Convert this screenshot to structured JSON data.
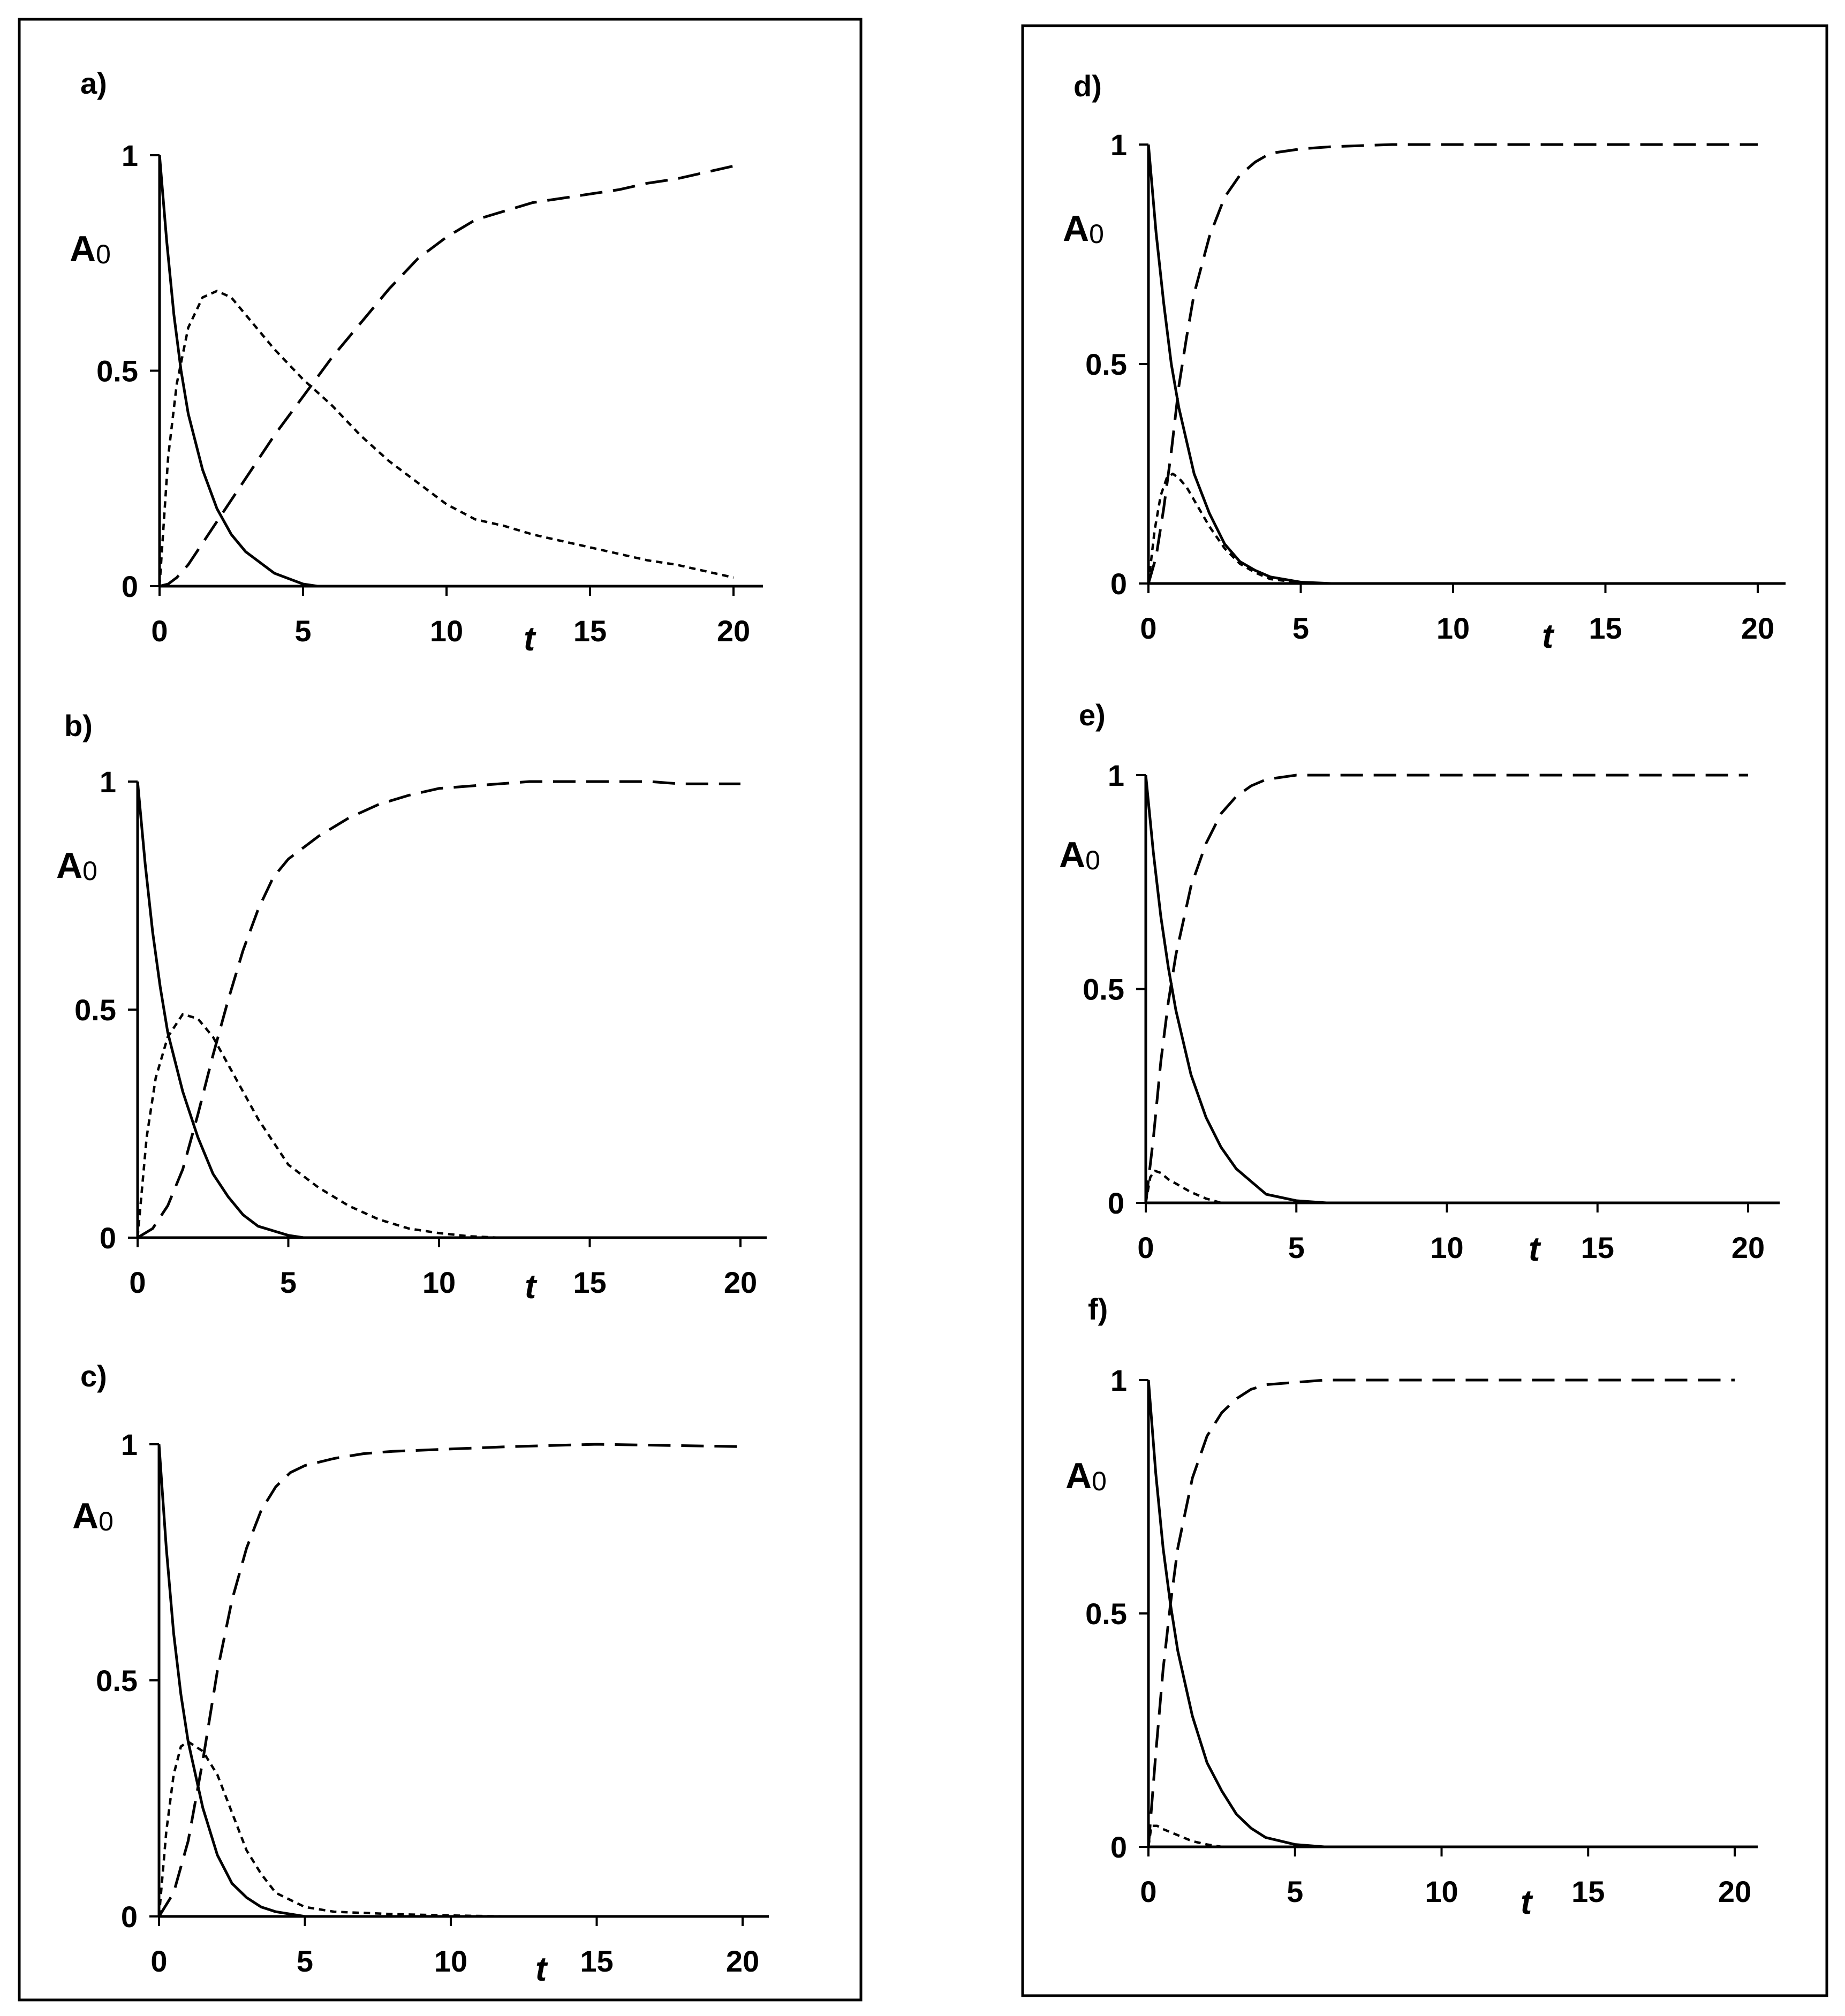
{
  "chart_data": [
    {
      "panel_label": "a)",
      "type": "line",
      "ylabel": "A₀",
      "xlabel": "t",
      "xlim": [
        0,
        20
      ],
      "ylim": [
        0,
        1
      ],
      "x_ticks": [
        "0",
        "5",
        "10",
        "15",
        "20"
      ],
      "y_ticks": [
        "0",
        "0.5",
        "1"
      ],
      "series": [
        {
          "style": "solid",
          "x": [
            0,
            0.25,
            0.5,
            0.75,
            1,
            1.5,
            2,
            2.5,
            3,
            4,
            5,
            5.5
          ],
          "y": [
            1,
            0.8,
            0.63,
            0.5,
            0.4,
            0.27,
            0.18,
            0.12,
            0.08,
            0.03,
            0.005,
            0
          ]
        },
        {
          "style": "dotted",
          "x": [
            0,
            0.3,
            0.6,
            1,
            1.5,
            2,
            2.5,
            3,
            4,
            5,
            6,
            7,
            8,
            9,
            10,
            11,
            12,
            13,
            14,
            15,
            16,
            17,
            18,
            19,
            20
          ],
          "y": [
            0,
            0.3,
            0.47,
            0.6,
            0.67,
            0.685,
            0.67,
            0.63,
            0.55,
            0.48,
            0.42,
            0.35,
            0.29,
            0.24,
            0.19,
            0.155,
            0.14,
            0.12,
            0.105,
            0.09,
            0.075,
            0.06,
            0.05,
            0.035,
            0.02
          ]
        },
        {
          "style": "dashed",
          "x": [
            0,
            0.3,
            0.6,
            1,
            1.5,
            2,
            3,
            4,
            5,
            6,
            7,
            8,
            9,
            10,
            11,
            12,
            13,
            14,
            15,
            16,
            17,
            18,
            19,
            20
          ],
          "y": [
            0,
            0.005,
            0.02,
            0.05,
            0.1,
            0.15,
            0.25,
            0.35,
            0.44,
            0.53,
            0.61,
            0.69,
            0.76,
            0.81,
            0.85,
            0.87,
            0.89,
            0.9,
            0.91,
            0.92,
            0.935,
            0.945,
            0.96,
            0.975
          ]
        }
      ]
    },
    {
      "panel_label": "b)",
      "type": "line",
      "ylabel": "A₀",
      "xlabel": "t",
      "xlim": [
        0,
        20
      ],
      "ylim": [
        0,
        1
      ],
      "x_ticks": [
        "0",
        "5",
        "10",
        "15",
        "20"
      ],
      "y_ticks": [
        "0",
        "0.5",
        "1"
      ],
      "series": [
        {
          "style": "solid",
          "x": [
            0,
            0.25,
            0.5,
            0.75,
            1,
            1.5,
            2,
            2.5,
            3,
            3.5,
            4,
            5,
            5.5
          ],
          "y": [
            1,
            0.82,
            0.67,
            0.55,
            0.45,
            0.32,
            0.22,
            0.14,
            0.09,
            0.05,
            0.025,
            0.005,
            0
          ]
        },
        {
          "style": "dotted",
          "x": [
            0,
            0.3,
            0.6,
            1,
            1.5,
            2,
            2.5,
            3,
            4,
            5,
            6,
            7,
            8,
            9,
            10,
            11,
            12
          ],
          "y": [
            0,
            0.22,
            0.35,
            0.44,
            0.49,
            0.48,
            0.44,
            0.38,
            0.26,
            0.16,
            0.11,
            0.07,
            0.04,
            0.02,
            0.01,
            0.003,
            0
          ]
        },
        {
          "style": "dashed",
          "x": [
            0,
            0.5,
            1,
            1.5,
            2,
            2.5,
            3,
            3.5,
            4,
            4.5,
            5,
            6,
            7,
            8,
            9,
            10,
            11,
            12,
            13,
            14,
            15,
            16,
            17,
            18,
            19,
            20
          ],
          "y": [
            0,
            0.02,
            0.07,
            0.15,
            0.27,
            0.4,
            0.52,
            0.63,
            0.72,
            0.79,
            0.83,
            0.88,
            0.92,
            0.95,
            0.97,
            0.985,
            0.99,
            0.995,
            1,
            1,
            1,
            1,
            1,
            0.995,
            0.995,
            0.995
          ]
        }
      ]
    },
    {
      "panel_label": "c)",
      "type": "line",
      "ylabel": "A₀",
      "xlabel": "t",
      "xlim": [
        0,
        20
      ],
      "ylim": [
        0,
        1
      ],
      "x_ticks": [
        "0",
        "5",
        "10",
        "15",
        "20"
      ],
      "y_ticks": [
        "0",
        "0.5",
        "1"
      ],
      "series": [
        {
          "style": "solid",
          "x": [
            0,
            0.25,
            0.5,
            0.75,
            1,
            1.5,
            2,
            2.5,
            3,
            3.5,
            4,
            5
          ],
          "y": [
            1,
            0.78,
            0.6,
            0.47,
            0.37,
            0.23,
            0.13,
            0.07,
            0.04,
            0.02,
            0.01,
            0
          ]
        },
        {
          "style": "dotted",
          "x": [
            0,
            0.25,
            0.5,
            0.75,
            1,
            1.25,
            1.5,
            2,
            2.5,
            3,
            3.5,
            4,
            5,
            6,
            8,
            10,
            12,
            15,
            20
          ],
          "y": [
            0,
            0.18,
            0.3,
            0.36,
            0.37,
            0.36,
            0.35,
            0.3,
            0.22,
            0.14,
            0.09,
            0.05,
            0.02,
            0.01,
            0.005,
            0.002,
            0,
            0,
            0
          ]
        },
        {
          "style": "dashed",
          "x": [
            0,
            0.5,
            1,
            1.5,
            2,
            2.5,
            3,
            3.5,
            4,
            4.5,
            5,
            6,
            7,
            8,
            10,
            12,
            15,
            20
          ],
          "y": [
            0,
            0.05,
            0.16,
            0.33,
            0.52,
            0.67,
            0.78,
            0.86,
            0.91,
            0.94,
            0.955,
            0.97,
            0.98,
            0.985,
            0.99,
            0.995,
            1,
            0.995
          ]
        }
      ]
    },
    {
      "panel_label": "d)",
      "type": "line",
      "ylabel": "A₀",
      "xlabel": "t",
      "xlim": [
        0,
        20
      ],
      "ylim": [
        0,
        1
      ],
      "x_ticks": [
        "0",
        "5",
        "10",
        "15",
        "20"
      ],
      "y_ticks": [
        "0",
        "0.5",
        "1"
      ],
      "series": [
        {
          "style": "solid",
          "x": [
            0,
            0.25,
            0.5,
            0.75,
            1,
            1.5,
            2,
            2.5,
            3,
            3.5,
            4,
            5,
            6
          ],
          "y": [
            1,
            0.8,
            0.64,
            0.5,
            0.4,
            0.25,
            0.16,
            0.09,
            0.05,
            0.03,
            0.015,
            0.003,
            0
          ]
        },
        {
          "style": "dotted",
          "x": [
            0,
            0.2,
            0.4,
            0.6,
            0.8,
            1,
            1.25,
            1.5,
            2,
            2.5,
            3,
            3.5,
            4,
            5,
            6
          ],
          "y": [
            0,
            0.12,
            0.2,
            0.24,
            0.25,
            0.24,
            0.22,
            0.19,
            0.13,
            0.08,
            0.045,
            0.025,
            0.01,
            0.002,
            0
          ]
        },
        {
          "style": "dashed",
          "x": [
            0,
            0.25,
            0.5,
            0.75,
            1,
            1.25,
            1.5,
            2,
            2.5,
            3,
            3.5,
            4,
            5,
            6,
            8,
            10,
            15,
            20
          ],
          "y": [
            0,
            0.06,
            0.17,
            0.3,
            0.45,
            0.56,
            0.66,
            0.79,
            0.88,
            0.93,
            0.96,
            0.98,
            0.99,
            0.995,
            1,
            1,
            1,
            1
          ]
        }
      ]
    },
    {
      "panel_label": "e)",
      "type": "line",
      "ylabel": "A₀",
      "xlabel": "t",
      "xlim": [
        0,
        20
      ],
      "ylim": [
        0,
        1
      ],
      "x_ticks": [
        "0",
        "5",
        "10",
        "15",
        "20"
      ],
      "y_ticks": [
        "0",
        "0.5",
        "1"
      ],
      "series": [
        {
          "style": "solid",
          "x": [
            0,
            0.25,
            0.5,
            0.75,
            1,
            1.5,
            2,
            2.5,
            3,
            3.5,
            4,
            5,
            6
          ],
          "y": [
            1,
            0.82,
            0.67,
            0.55,
            0.45,
            0.3,
            0.2,
            0.13,
            0.08,
            0.05,
            0.02,
            0.005,
            0
          ]
        },
        {
          "style": "dotted",
          "x": [
            0,
            0.15,
            0.3,
            0.5,
            0.75,
            1,
            1.5,
            2,
            2.5
          ],
          "y": [
            0,
            0.06,
            0.075,
            0.07,
            0.055,
            0.045,
            0.025,
            0.01,
            0
          ]
        },
        {
          "style": "dashed",
          "x": [
            0,
            0.25,
            0.5,
            0.75,
            1,
            1.5,
            2,
            2.5,
            3,
            3.5,
            4,
            5,
            6,
            8,
            10,
            15,
            20
          ],
          "y": [
            0,
            0.15,
            0.33,
            0.47,
            0.58,
            0.74,
            0.84,
            0.91,
            0.95,
            0.975,
            0.99,
            1,
            1,
            1,
            1,
            1,
            1
          ]
        }
      ]
    },
    {
      "panel_label": "f)",
      "type": "line",
      "ylabel": "A₀",
      "xlabel": "t",
      "xlim": [
        0,
        20
      ],
      "ylim": [
        0,
        1
      ],
      "x_ticks": [
        "0",
        "5",
        "10",
        "15",
        "20"
      ],
      "y_ticks": [
        "0",
        "0.5",
        "1"
      ],
      "series": [
        {
          "style": "solid",
          "x": [
            0,
            0.25,
            0.5,
            0.75,
            1,
            1.5,
            2,
            2.5,
            3,
            3.5,
            4,
            5,
            6
          ],
          "y": [
            1,
            0.8,
            0.64,
            0.52,
            0.42,
            0.28,
            0.18,
            0.12,
            0.07,
            0.04,
            0.02,
            0.005,
            0
          ]
        },
        {
          "style": "dotted",
          "x": [
            0,
            0.1,
            0.3,
            0.5,
            1,
            1.5,
            2,
            2.5
          ],
          "y": [
            0,
            0.045,
            0.045,
            0.038,
            0.025,
            0.012,
            0.005,
            0
          ]
        },
        {
          "style": "dashed",
          "x": [
            0,
            0.25,
            0.5,
            0.75,
            1,
            1.5,
            2,
            2.5,
            3,
            3.5,
            4,
            5,
            6,
            8,
            10,
            15,
            20
          ],
          "y": [
            0,
            0.2,
            0.38,
            0.52,
            0.64,
            0.79,
            0.88,
            0.93,
            0.96,
            0.98,
            0.99,
            0.995,
            1,
            1,
            1,
            1,
            1
          ]
        }
      ]
    }
  ]
}
